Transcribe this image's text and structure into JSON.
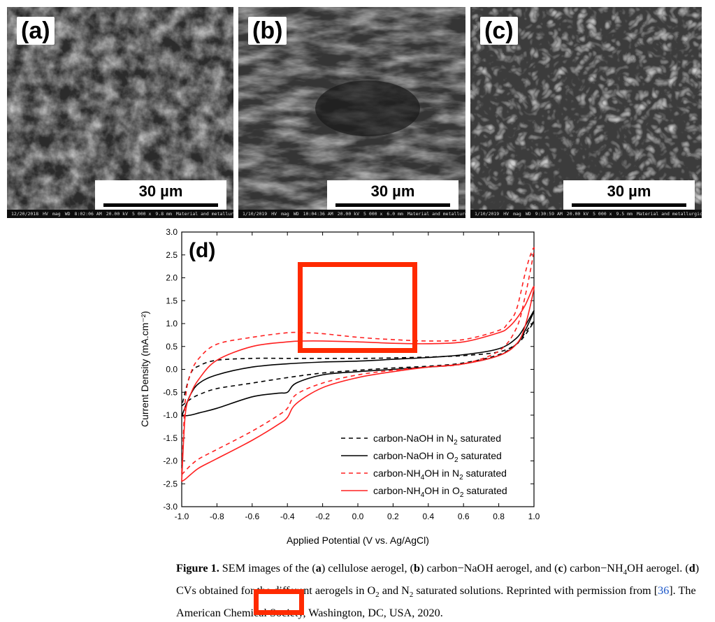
{
  "panels": [
    {
      "letter": "(a)",
      "scale": "30 µm",
      "info": [
        "12/20/2018",
        "HV",
        "mag",
        "WD",
        "8:02:06 AM",
        "20.00 kV",
        "5 000 x",
        "9.8 mm",
        "Material and metallurgical Eng Dept ITS"
      ]
    },
    {
      "letter": "(b)",
      "scale": "30 µm",
      "info": [
        "1/10/2019",
        "HV",
        "mag",
        "WD",
        "10:04:36 AM",
        "20.00 kV",
        "5 000 x",
        "6.0 mm",
        "Material and metallurgical Eng Dept ITS"
      ]
    },
    {
      "letter": "(c)",
      "scale": "30 µm",
      "info": [
        "1/10/2019",
        "HV",
        "mag",
        "WD",
        "9:30:59 AM",
        "20.00 kV",
        "5 000 x",
        "9.5 mm",
        "Material and metallurgical Eng Dept ITS"
      ]
    }
  ],
  "chart_data": {
    "type": "line",
    "panel_label": "(d)",
    "xlabel": "Applied Potential (V vs. Ag/AgCl)",
    "ylabel": "Current Density (mA.cm⁻²)",
    "xlim": [
      -1.0,
      1.0
    ],
    "ylim": [
      -3.0,
      3.0
    ],
    "xticks": [
      "-1.0",
      "-0.8",
      "-0.6",
      "-0.4",
      "-0.2",
      "0.0",
      "0.2",
      "0.4",
      "0.6",
      "0.8",
      "1.0"
    ],
    "yticks": [
      "3.0",
      "2.5",
      "2.0",
      "1.5",
      "1.0",
      "0.5",
      "0.0",
      "-0.5",
      "-1.0",
      "-1.5",
      "-2.0",
      "-2.5",
      "-3.0"
    ],
    "legend_position": "bottom-right",
    "series": [
      {
        "name": "carbon-NaOH in N2 saturated",
        "color": "#000000",
        "dash": true,
        "x": [
          -1.0,
          -0.95,
          -0.9,
          -0.8,
          -0.6,
          -0.4,
          -0.2,
          0.0,
          0.2,
          0.4,
          0.6,
          0.8,
          0.9,
          0.95,
          1.0,
          0.95,
          0.9,
          0.8,
          0.6,
          0.4,
          0.2,
          0.0,
          -0.2,
          -0.4,
          -0.6,
          -0.8,
          -0.9,
          -0.95,
          -1.0
        ],
        "y": [
          -0.8,
          -0.65,
          -0.55,
          -0.42,
          -0.3,
          -0.18,
          -0.08,
          -0.02,
          0.03,
          0.07,
          0.14,
          0.32,
          0.55,
          0.8,
          1.05,
          0.75,
          0.55,
          0.38,
          0.3,
          0.27,
          0.25,
          0.24,
          0.24,
          0.24,
          0.24,
          0.2,
          0.08,
          -0.1,
          -0.8
        ]
      },
      {
        "name": "carbon-NaOH in O2 saturated",
        "color": "#000000",
        "dash": false,
        "x": [
          -1.0,
          -0.95,
          -0.9,
          -0.8,
          -0.6,
          -0.45,
          -0.4,
          -0.35,
          -0.2,
          0.0,
          0.2,
          0.4,
          0.6,
          0.8,
          0.9,
          0.95,
          1.0,
          0.95,
          0.9,
          0.8,
          0.6,
          0.4,
          0.2,
          0.0,
          -0.2,
          -0.4,
          -0.6,
          -0.8,
          -0.9,
          -0.95,
          -1.0
        ],
        "y": [
          -1.02,
          -1.0,
          -0.95,
          -0.85,
          -0.6,
          -0.52,
          -0.5,
          -0.3,
          -0.12,
          -0.05,
          0.0,
          0.05,
          0.12,
          0.3,
          0.55,
          0.85,
          1.28,
          0.95,
          0.68,
          0.45,
          0.32,
          0.26,
          0.22,
          0.18,
          0.16,
          0.12,
          0.05,
          -0.12,
          -0.3,
          -0.55,
          -1.02
        ]
      },
      {
        "name": "carbon-NH4OH in N2 saturated",
        "color": "#ff2020",
        "dash": true,
        "x": [
          -1.0,
          -0.98,
          -0.95,
          -0.9,
          -0.8,
          -0.6,
          -0.45,
          -0.4,
          -0.35,
          -0.2,
          0.0,
          0.2,
          0.4,
          0.6,
          0.8,
          0.9,
          0.95,
          1.0,
          0.98,
          0.95,
          0.9,
          0.85,
          0.8,
          0.6,
          0.4,
          0.2,
          0.0,
          -0.2,
          -0.3,
          -0.4,
          -0.6,
          -0.8,
          -0.9,
          -0.95,
          -0.98,
          -1.0
        ],
        "y": [
          -2.3,
          -2.22,
          -2.1,
          -1.95,
          -1.75,
          -1.35,
          -1.0,
          -0.85,
          -0.55,
          -0.3,
          -0.12,
          -0.02,
          0.05,
          0.12,
          0.4,
          0.9,
          1.6,
          2.6,
          2.5,
          2.1,
          1.3,
          1.0,
          0.85,
          0.65,
          0.62,
          0.65,
          0.7,
          0.78,
          0.8,
          0.8,
          0.7,
          0.55,
          0.25,
          -0.1,
          -0.7,
          -2.3
        ]
      },
      {
        "name": "carbon-NH4OH in O2 saturated",
        "color": "#ff2020",
        "dash": false,
        "x": [
          -1.0,
          -0.98,
          -0.95,
          -0.9,
          -0.8,
          -0.6,
          -0.45,
          -0.4,
          -0.35,
          -0.2,
          0.0,
          0.2,
          0.4,
          0.6,
          0.8,
          0.9,
          0.95,
          1.0,
          0.95,
          0.9,
          0.85,
          0.8,
          0.6,
          0.4,
          0.2,
          0.0,
          -0.2,
          -0.3,
          -0.4,
          -0.6,
          -0.8,
          -0.9,
          -0.95,
          -0.98,
          -1.0
        ],
        "y": [
          -2.45,
          -2.4,
          -2.3,
          -2.15,
          -1.95,
          -1.55,
          -1.2,
          -1.05,
          -0.75,
          -0.4,
          -0.18,
          -0.05,
          0.05,
          0.12,
          0.3,
          0.55,
          0.95,
          1.8,
          1.4,
          1.1,
          0.9,
          0.8,
          0.6,
          0.56,
          0.57,
          0.6,
          0.62,
          0.62,
          0.6,
          0.5,
          0.2,
          -0.2,
          -0.55,
          -1.0,
          -2.45
        ]
      }
    ]
  },
  "legend": [
    {
      "prefix": "carbon-NaOH in N",
      "sub1": "",
      "mid": "",
      "sub2": "2",
      "suffix": " saturated"
    },
    {
      "prefix": "carbon-NaOH in O",
      "sub1": "",
      "mid": "",
      "sub2": "2",
      "suffix": " saturated"
    },
    {
      "prefix": "carbon-NH",
      "sub1": "4",
      "mid": "OH in N",
      "sub2": "2",
      "suffix": " saturated"
    },
    {
      "prefix": "carbon-NH",
      "sub1": "4",
      "mid": "OH in O",
      "sub2": "2",
      "suffix": " saturated"
    }
  ],
  "caption": {
    "label": "Figure 1.",
    "t1": " SEM images of the (",
    "a": "a",
    "t2": ") cellulose aerogel, (",
    "b": "b",
    "t3": ") carbon−NaOH aerogel, and (",
    "c": "c",
    "t4": ") carbon−NH",
    "sub4": "4",
    "t5": "OH aerogel. (",
    "d": "d",
    "t6": ") CVs obtained for the different aerogels in O",
    "sub2a": "2",
    "t7": " and N",
    "sub2b": "2",
    "t8": " saturated solutions. Reprinted with permission from [",
    "ref": "36",
    "t9": "]. The American Chemical Society, Washington, DC, USA, 2020."
  },
  "highlight_color": "#ff2a00"
}
